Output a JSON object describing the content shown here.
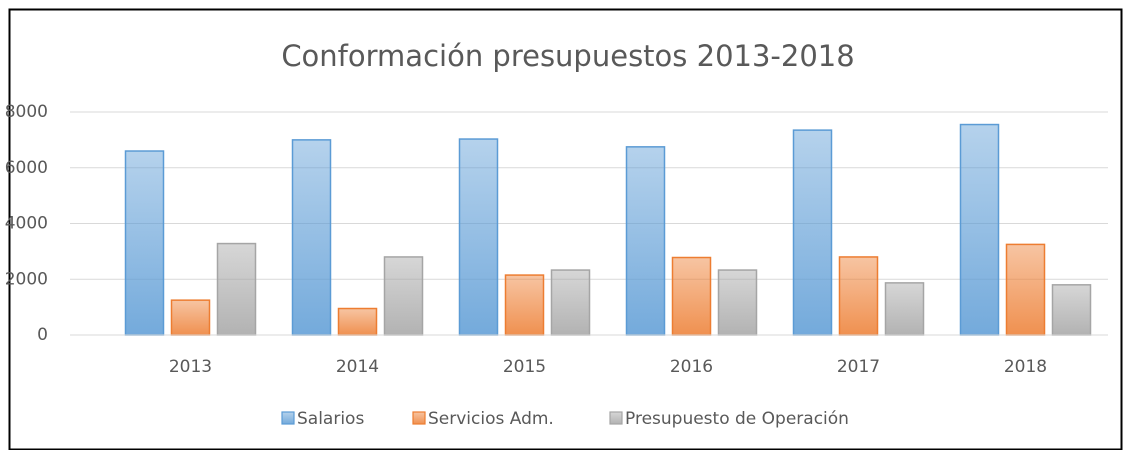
{
  "chart_data": {
    "type": "bar",
    "title": "Conformación presupuestos 2013-2018",
    "categories": [
      "2013",
      "2014",
      "2015",
      "2016",
      "2017",
      "2018"
    ],
    "series": [
      {
        "name": "Salarios",
        "color": "#5b9bd5",
        "values": [
          6600,
          7000,
          7030,
          6750,
          7350,
          7550
        ]
      },
      {
        "name": "Servicios Adm.",
        "color": "#ed7d31",
        "values": [
          1250,
          950,
          2150,
          2780,
          2800,
          3250
        ]
      },
      {
        "name": "Presupuesto de Operación",
        "color": "#a5a5a5",
        "values": [
          3280,
          2800,
          2330,
          2330,
          1870,
          1800
        ]
      }
    ],
    "ylim": [
      0,
      8000
    ],
    "yticks": [
      0,
      2000,
      4000,
      6000,
      8000
    ],
    "grid": true,
    "legend": "bottom"
  }
}
